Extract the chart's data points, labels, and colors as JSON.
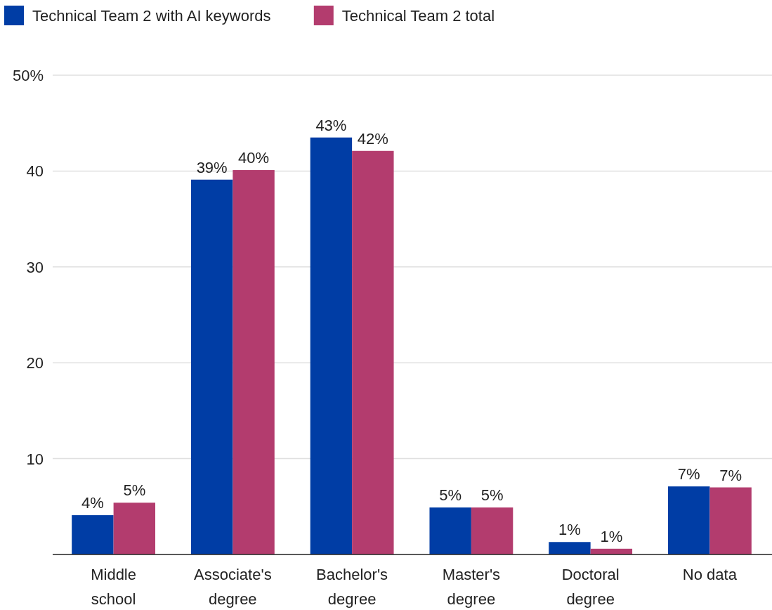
{
  "chart_data": {
    "type": "bar",
    "categories": [
      "Middle school",
      "Associate's degree",
      "Bachelor's degree",
      "Master's degree",
      "Doctoral degree",
      "No data"
    ],
    "series": [
      {
        "name": "Technical Team 2 with AI keywords",
        "color": "#003da5",
        "values": [
          4.1,
          39.1,
          43.5,
          4.9,
          1.3,
          7.1
        ],
        "value_labels": [
          "4%",
          "39%",
          "43%",
          "5%",
          "1%",
          "7%"
        ]
      },
      {
        "name": "Technical Team 2 total",
        "color": "#b33c6e",
        "values": [
          5.4,
          40.1,
          42.1,
          4.9,
          0.6,
          7.0
        ],
        "value_labels": [
          "5%",
          "40%",
          "42%",
          "5%",
          "1%",
          "7%"
        ]
      }
    ],
    "ylim": [
      0,
      50
    ],
    "yticks": [
      10,
      20,
      30,
      40,
      {
        "value": 50,
        "label": "50%"
      }
    ],
    "grid": "y",
    "legend": "top left"
  }
}
